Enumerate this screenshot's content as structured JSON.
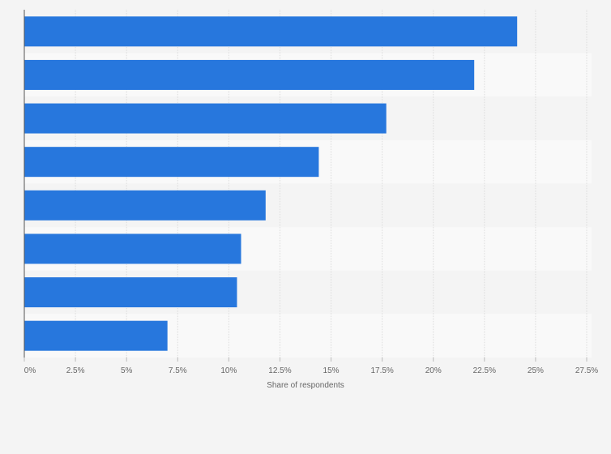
{
  "chart_data": {
    "type": "bar",
    "orientation": "horizontal",
    "title": "",
    "xlabel": "Share of respondents",
    "ylabel": "",
    "xlim": [
      0,
      27.5
    ],
    "x_ticks": [
      0,
      2.5,
      5,
      7.5,
      10,
      12.5,
      15,
      17.5,
      20,
      22.5,
      25,
      27.5
    ],
    "x_tick_labels": [
      "0%",
      "2.5%",
      "5%",
      "7.5%",
      "10%",
      "12.5%",
      "15%",
      "17.5%",
      "20%",
      "22.5%",
      "25%",
      "27.5%"
    ],
    "categories": [
      "",
      "",
      "",
      "",
      "",
      "",
      "",
      ""
    ],
    "values": [
      24.1,
      22.0,
      17.7,
      14.4,
      11.8,
      10.6,
      10.4,
      7.0
    ],
    "bar_color": "#2777dd",
    "grid": true,
    "legend": "none"
  }
}
